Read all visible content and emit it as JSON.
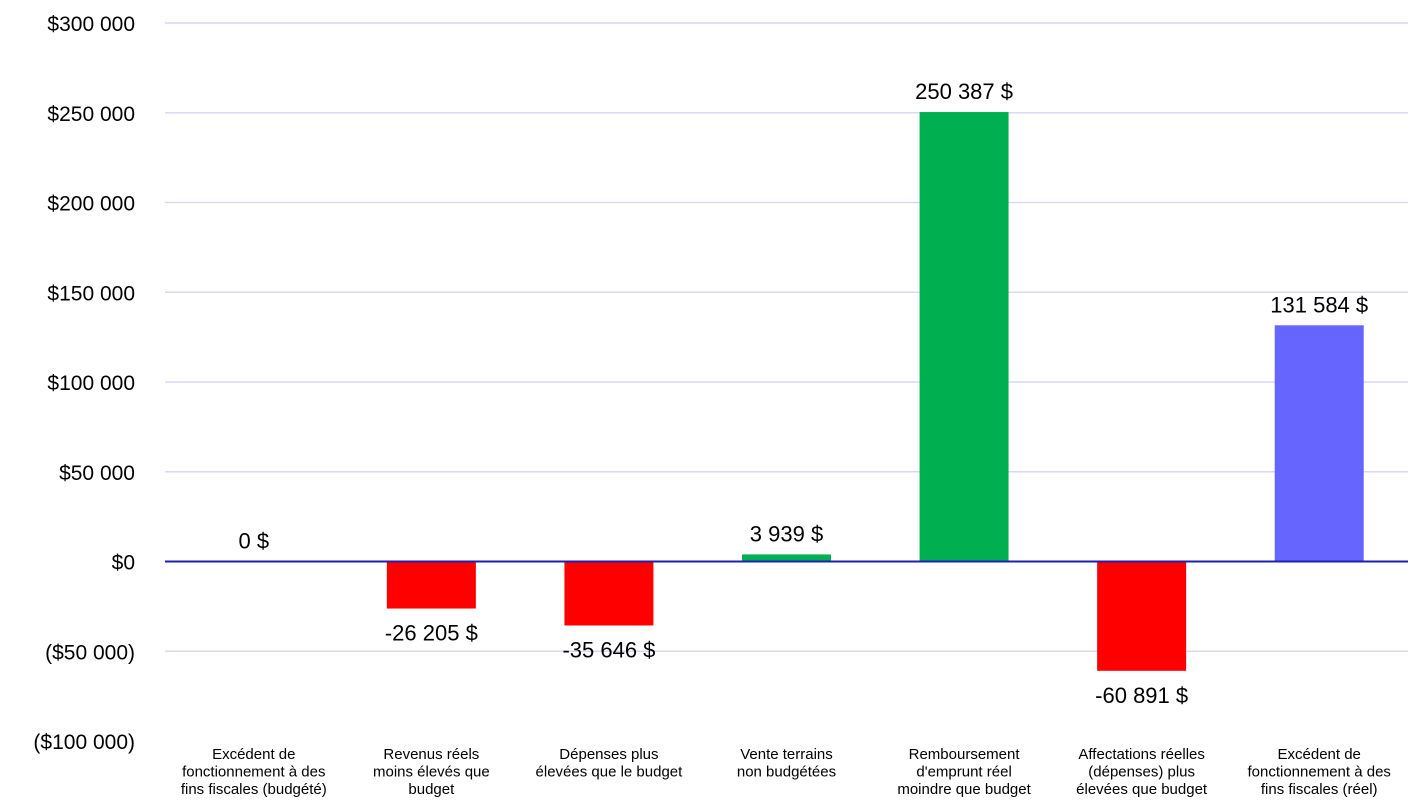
{
  "chart_data": {
    "type": "bar",
    "title": "",
    "xlabel": "",
    "ylabel": "",
    "ylim": [
      -100000,
      300000
    ],
    "y_ticks": [
      300000,
      250000,
      200000,
      150000,
      100000,
      50000,
      0,
      -50000,
      -100000
    ],
    "y_tick_labels": [
      "$300 000",
      "$250 000",
      "$200 000",
      "$150 000",
      "$100 000",
      "$50 000",
      "$0",
      "($50 000)",
      "($100 000)"
    ],
    "grid": true,
    "legend": "none",
    "categories": [
      [
        "Excédent de",
        "fonctionnement à des",
        "fins fiscales (budgété)"
      ],
      [
        "Revenus réels",
        "moins élevés que",
        "budget"
      ],
      [
        "Dépenses plus",
        "élevées que le budget"
      ],
      [
        "Vente terrains",
        "non budgétées"
      ],
      [
        "Remboursement",
        "d'emprunt réel",
        "moindre que budget"
      ],
      [
        "Affectations réelles",
        "(dépenses) plus",
        "élevées que budget"
      ],
      [
        "Excédent de",
        "fonctionnement à des",
        "fins fiscales (réel)"
      ]
    ],
    "values": [
      0,
      -26205,
      -35646,
      3939,
      250387,
      -60891,
      131584
    ],
    "data_labels": [
      "0 $",
      "-26 205 $",
      "-35 646 $",
      "3 939 $",
      "250 387 $",
      "-60 891 $",
      "131 584 $"
    ],
    "colors": [
      "#000000",
      "#ff0000",
      "#ff0000",
      "#00b050",
      "#00b050",
      "#ff0000",
      "#6666ff"
    ]
  }
}
